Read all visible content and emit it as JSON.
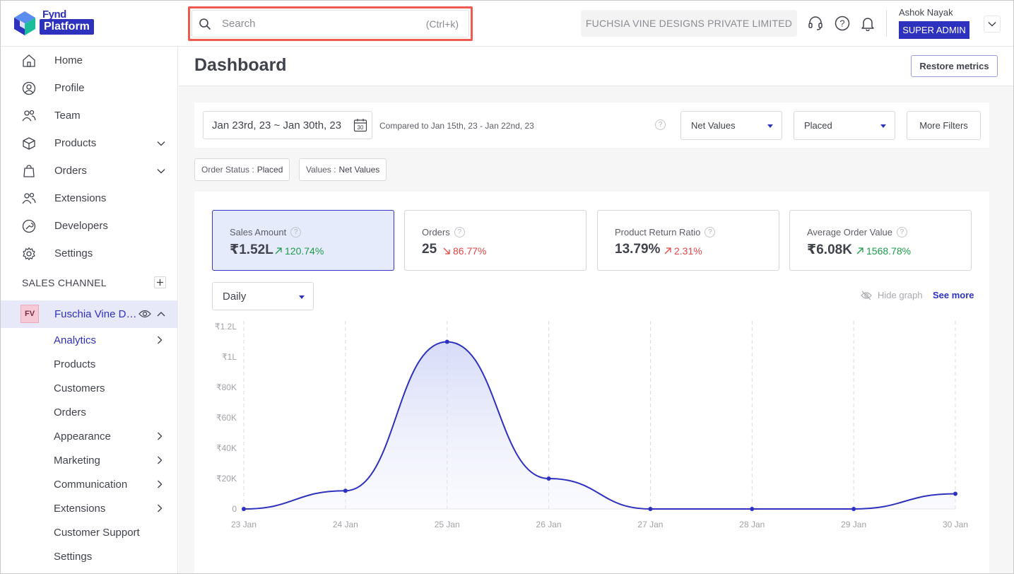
{
  "brand": {
    "top": "Fynd",
    "bottom": "Platform"
  },
  "search": {
    "placeholder": "Search",
    "shortcut": "(Ctrl+k)"
  },
  "company": "FUCHSIA VINE DESIGNS PRIVATE LIMITED",
  "user": {
    "name": "Ashok Nayak",
    "role": "SUPER ADMIN"
  },
  "icons": {
    "support": "headset-icon",
    "help": "help-circle-icon",
    "notify": "bell-icon",
    "search": "search-icon",
    "caret": "chevron-down-icon"
  },
  "sidebar": {
    "items": [
      {
        "label": "Home",
        "icon": "home-icon"
      },
      {
        "label": "Profile",
        "icon": "user-circle-icon"
      },
      {
        "label": "Team",
        "icon": "team-icon"
      },
      {
        "label": "Products",
        "icon": "box-icon",
        "expandable": true
      },
      {
        "label": "Orders",
        "icon": "bag-icon",
        "expandable": true
      },
      {
        "label": "Extensions",
        "icon": "extensions-icon"
      },
      {
        "label": "Developers",
        "icon": "wrench-icon"
      },
      {
        "label": "Settings",
        "icon": "gear-icon"
      }
    ],
    "section_title": "SALES CHANNEL",
    "channel": {
      "logo": "FV",
      "name": "Fuschia Vine Designs"
    },
    "sub_items": [
      {
        "label": "Analytics",
        "active": true,
        "arrow": true
      },
      {
        "label": "Products"
      },
      {
        "label": "Customers"
      },
      {
        "label": "Orders"
      },
      {
        "label": "Appearance",
        "arrow": true
      },
      {
        "label": "Marketing",
        "arrow": true
      },
      {
        "label": "Communication",
        "arrow": true
      },
      {
        "label": "Extensions",
        "arrow": true
      },
      {
        "label": "Customer Support"
      },
      {
        "label": "Settings"
      }
    ]
  },
  "page": {
    "title": "Dashboard",
    "restore_label": "Restore metrics"
  },
  "filters": {
    "date_range": "Jan 23rd, 23 ~ Jan 30th, 23",
    "calendar_day": "30",
    "compare": "Compared to Jan 15th, 23 - Jan 22nd, 23",
    "value_type": "Net Values",
    "status": "Placed",
    "more_label": "More Filters"
  },
  "chips": [
    {
      "key": "Order Status :",
      "value": "Placed"
    },
    {
      "key": "Values :",
      "value": "Net Values"
    }
  ],
  "kpis": [
    {
      "label": "Sales Amount",
      "value": "₹1.52L",
      "change": "120.74%",
      "direction": "up",
      "active": true
    },
    {
      "label": "Orders",
      "value": "25",
      "change": "86.77%",
      "direction": "down"
    },
    {
      "label": "Product Return Ratio",
      "value": "13.79%",
      "change": "2.31%",
      "direction": "up-red"
    },
    {
      "label": "Average Order Value",
      "value": "₹6.08K",
      "change": "1568.78%",
      "direction": "up"
    }
  ],
  "graph_controls": {
    "period": "Daily",
    "hide_label": "Hide graph",
    "see_more_label": "See more"
  },
  "colors": {
    "accent": "#2e31be",
    "up": "#1c9b4a",
    "down": "#e14545",
    "search_highlight": "#ee5a4f"
  },
  "chart_data": {
    "type": "area",
    "categories": [
      "23 Jan",
      "24 Jan",
      "25 Jan",
      "26 Jan",
      "27 Jan",
      "28 Jan",
      "29 Jan",
      "30 Jan"
    ],
    "values": [
      0,
      12000,
      110000,
      20000,
      0,
      0,
      0,
      10000
    ],
    "y_ticks": [
      "0",
      "₹20K",
      "₹40K",
      "₹60K",
      "₹80K",
      "₹1L",
      "₹1.2L"
    ],
    "ylim": [
      0,
      120000
    ],
    "grid": "vertical-dashed"
  }
}
